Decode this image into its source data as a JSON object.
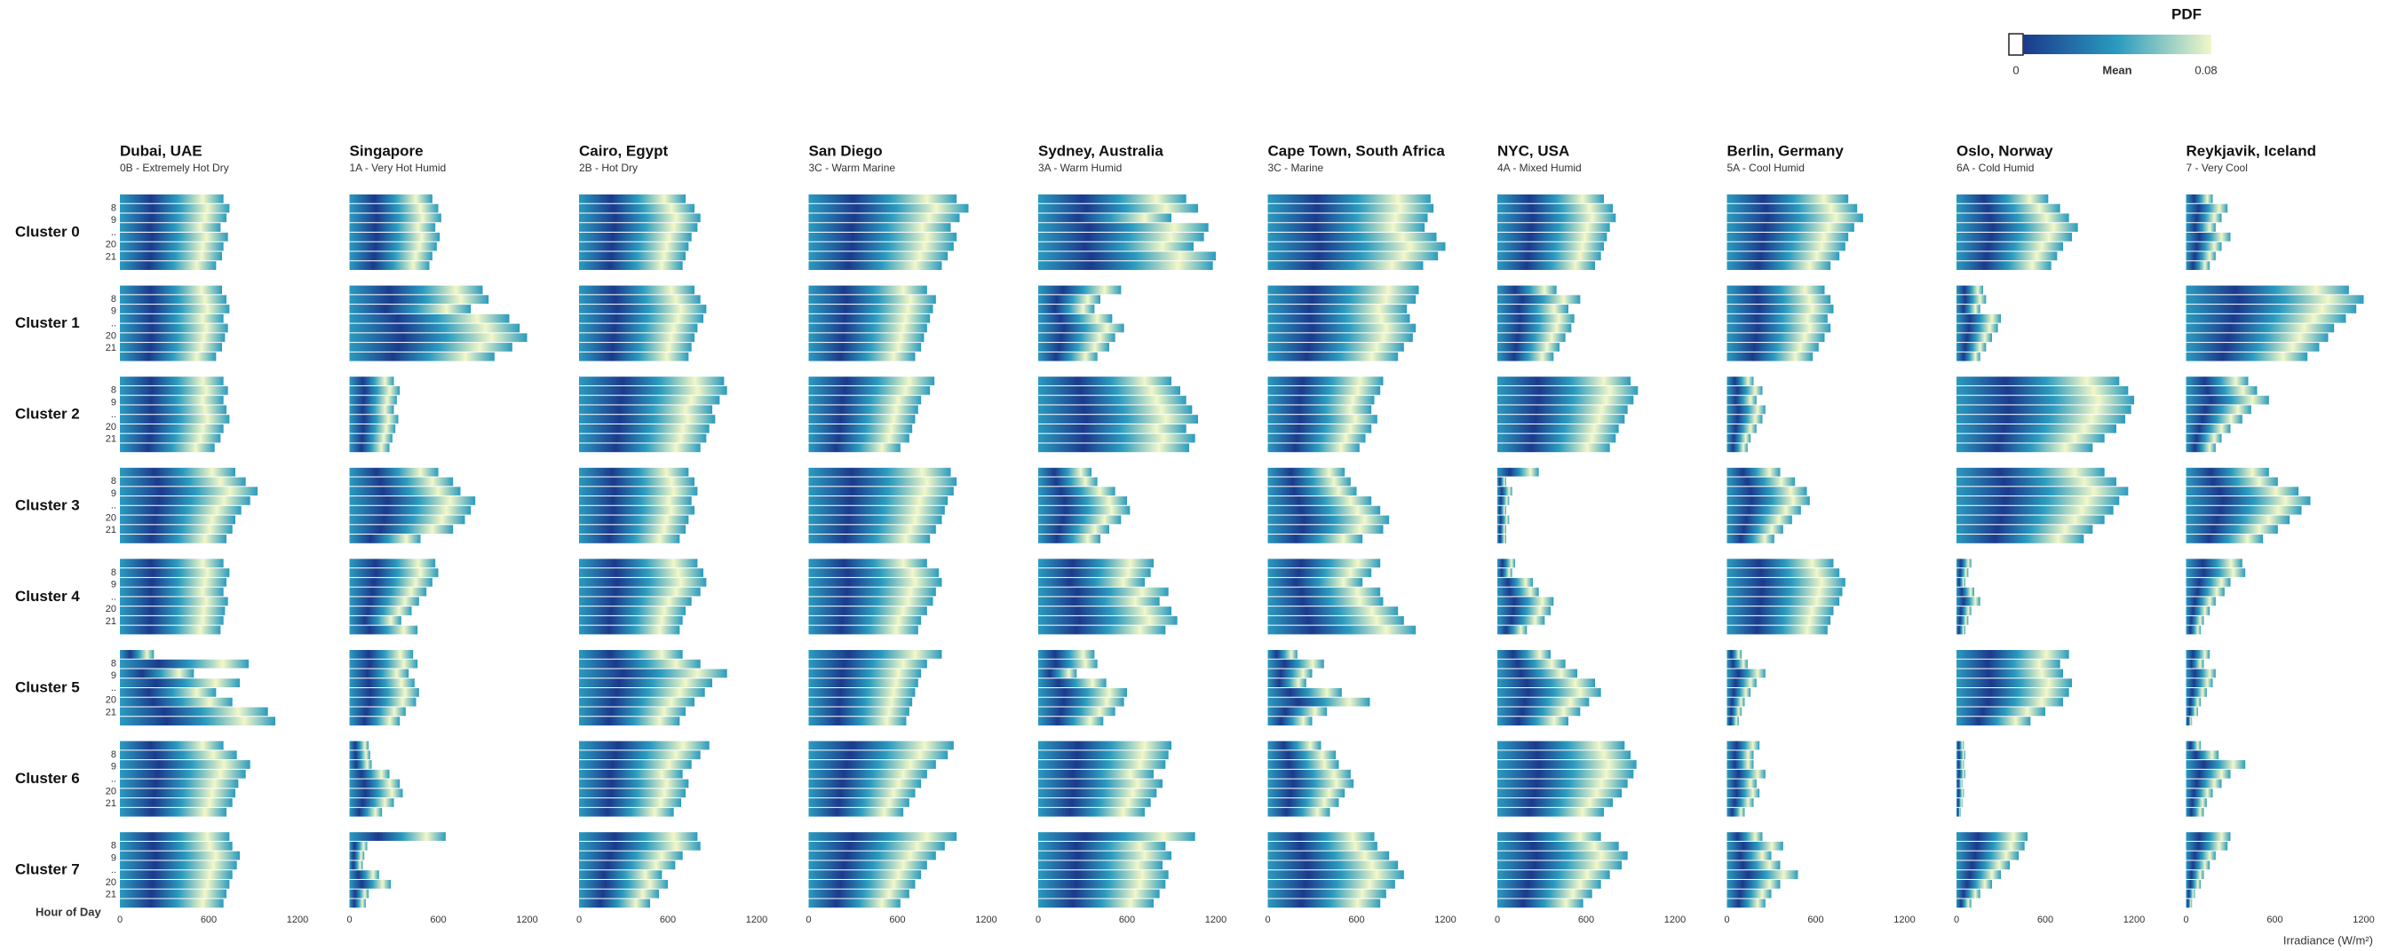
{
  "chart_data": {
    "type": "heatmap-grid",
    "xlabel": "Irradiance (W/m²)",
    "ylabel": "Hour of Day",
    "xlim": [
      0,
      1200
    ],
    "xticks": [
      0,
      600,
      1200
    ],
    "hour_labels": [
      "8",
      "9",
      "..",
      "20",
      "21"
    ],
    "clusters": [
      "Cluster 0",
      "Cluster 1",
      "Cluster 2",
      "Cluster 3",
      "Cluster 4",
      "Cluster 5",
      "Cluster 6",
      "Cluster 7"
    ],
    "colorbar": {
      "title": "PDF",
      "label": "Mean",
      "lim": [
        0,
        0.08
      ],
      "ticks": [
        0,
        0.08
      ],
      "colors": [
        "#ffffff",
        "#1b3a8c",
        "#2a9bbf",
        "#f2f7c8"
      ]
    },
    "cities": [
      {
        "name": "Dubai, UAE",
        "climate": "0B - Extremely Hot Dry",
        "extents": [
          [
            700,
            740,
            720,
            680,
            730,
            700,
            690,
            650
          ],
          [
            690,
            720,
            740,
            700,
            730,
            710,
            690,
            650
          ],
          [
            700,
            730,
            700,
            720,
            740,
            700,
            680,
            640
          ],
          [
            780,
            850,
            930,
            880,
            820,
            780,
            760,
            720
          ],
          [
            700,
            740,
            720,
            700,
            730,
            710,
            700,
            680
          ],
          [
            230,
            870,
            500,
            810,
            650,
            760,
            1000,
            1050
          ],
          [
            700,
            790,
            880,
            850,
            800,
            780,
            760,
            720
          ],
          [
            740,
            760,
            810,
            790,
            760,
            740,
            720,
            700
          ]
        ]
      },
      {
        "name": "Singapore",
        "climate": "1A - Very Hot Humid",
        "extents": [
          [
            560,
            600,
            620,
            580,
            610,
            590,
            560,
            540
          ],
          [
            900,
            940,
            820,
            1080,
            1150,
            1200,
            1100,
            980
          ],
          [
            300,
            340,
            320,
            300,
            330,
            310,
            290,
            270
          ],
          [
            600,
            700,
            750,
            850,
            820,
            780,
            700,
            480
          ],
          [
            580,
            600,
            560,
            520,
            470,
            420,
            350,
            460
          ],
          [
            430,
            460,
            400,
            440,
            470,
            450,
            380,
            340
          ],
          [
            130,
            140,
            150,
            270,
            340,
            360,
            300,
            220
          ],
          [
            650,
            120,
            100,
            90,
            200,
            280,
            130,
            110
          ]
        ]
      },
      {
        "name": "Cairo, Egypt",
        "climate": "2B - Hot Dry",
        "extents": [
          [
            720,
            780,
            820,
            800,
            760,
            740,
            720,
            700
          ],
          [
            780,
            820,
            860,
            840,
            800,
            780,
            760,
            740
          ],
          [
            980,
            1000,
            950,
            900,
            920,
            880,
            860,
            820
          ],
          [
            740,
            780,
            800,
            760,
            780,
            740,
            720,
            680
          ],
          [
            800,
            840,
            860,
            820,
            760,
            720,
            700,
            680
          ],
          [
            700,
            820,
            1000,
            900,
            850,
            780,
            720,
            680
          ],
          [
            880,
            820,
            760,
            700,
            740,
            720,
            690,
            640
          ],
          [
            800,
            820,
            700,
            650,
            560,
            600,
            540,
            480
          ]
        ]
      },
      {
        "name": "San Diego",
        "climate": "3C - Warm Marine",
        "extents": [
          [
            1000,
            1080,
            1020,
            960,
            1000,
            980,
            940,
            900
          ],
          [
            800,
            860,
            840,
            820,
            800,
            780,
            760,
            720
          ],
          [
            850,
            820,
            760,
            740,
            720,
            700,
            680,
            620
          ],
          [
            960,
            1000,
            980,
            940,
            920,
            900,
            860,
            820
          ],
          [
            800,
            880,
            900,
            860,
            840,
            800,
            760,
            740
          ],
          [
            900,
            800,
            760,
            740,
            720,
            700,
            680,
            660
          ],
          [
            980,
            940,
            860,
            800,
            760,
            720,
            680,
            640
          ],
          [
            1000,
            920,
            860,
            800,
            760,
            720,
            680,
            620
          ]
        ]
      },
      {
        "name": "Sydney, Australia",
        "climate": "3A - Warm Humid",
        "extents": [
          [
            1000,
            1080,
            900,
            1150,
            1120,
            1050,
            1200,
            1180
          ],
          [
            560,
            420,
            380,
            500,
            580,
            520,
            480,
            400
          ],
          [
            900,
            960,
            1000,
            1040,
            1080,
            1000,
            1060,
            1020
          ],
          [
            360,
            400,
            520,
            600,
            620,
            560,
            480,
            420
          ],
          [
            780,
            760,
            720,
            880,
            820,
            900,
            940,
            860
          ],
          [
            380,
            400,
            260,
            460,
            600,
            580,
            520,
            440
          ],
          [
            900,
            880,
            860,
            780,
            840,
            800,
            760,
            720
          ],
          [
            1060,
            860,
            900,
            840,
            880,
            860,
            820,
            780
          ]
        ]
      },
      {
        "name": "Cape Town, South Africa",
        "climate": "3C - Marine",
        "extents": [
          [
            1100,
            1120,
            1080,
            1060,
            1140,
            1200,
            1150,
            1050
          ],
          [
            1020,
            1000,
            940,
            960,
            1000,
            980,
            920,
            880
          ],
          [
            780,
            760,
            720,
            700,
            740,
            700,
            660,
            620
          ],
          [
            520,
            560,
            600,
            700,
            760,
            820,
            780,
            640
          ],
          [
            760,
            700,
            640,
            760,
            780,
            880,
            920,
            1000
          ],
          [
            200,
            380,
            300,
            260,
            500,
            690,
            400,
            300
          ],
          [
            360,
            460,
            480,
            560,
            580,
            520,
            480,
            420
          ],
          [
            720,
            740,
            820,
            880,
            920,
            860,
            800,
            760
          ]
        ]
      },
      {
        "name": "NYC, USA",
        "climate": "4A - Mixed Humid",
        "extents": [
          [
            720,
            780,
            800,
            760,
            740,
            720,
            700,
            660
          ],
          [
            400,
            560,
            480,
            520,
            500,
            460,
            420,
            380
          ],
          [
            900,
            950,
            920,
            880,
            860,
            820,
            800,
            760
          ],
          [
            280,
            60,
            100,
            80,
            60,
            80,
            60,
            60
          ],
          [
            120,
            100,
            240,
            280,
            380,
            360,
            320,
            200
          ],
          [
            360,
            460,
            540,
            660,
            700,
            620,
            560,
            480
          ],
          [
            860,
            900,
            940,
            920,
            880,
            840,
            780,
            720
          ],
          [
            700,
            820,
            880,
            840,
            760,
            700,
            640,
            580
          ]
        ]
      },
      {
        "name": "Berlin, Germany",
        "climate": "5A - Cool Humid",
        "extents": [
          [
            820,
            880,
            920,
            860,
            820,
            800,
            760,
            700
          ],
          [
            660,
            700,
            720,
            680,
            700,
            660,
            620,
            580
          ],
          [
            180,
            240,
            200,
            260,
            240,
            200,
            160,
            140
          ],
          [
            360,
            460,
            540,
            560,
            500,
            440,
            380,
            320
          ],
          [
            720,
            760,
            800,
            780,
            760,
            720,
            700,
            680
          ],
          [
            100,
            140,
            260,
            200,
            160,
            120,
            100,
            80
          ],
          [
            220,
            180,
            180,
            260,
            200,
            220,
            180,
            120
          ],
          [
            240,
            380,
            300,
            360,
            480,
            360,
            300,
            260
          ]
        ]
      },
      {
        "name": "Oslo, Norway",
        "climate": "6A - Cold Humid",
        "extents": [
          [
            620,
            700,
            760,
            820,
            780,
            720,
            680,
            640
          ],
          [
            180,
            200,
            160,
            300,
            280,
            240,
            200,
            160
          ],
          [
            1100,
            1160,
            1200,
            1180,
            1140,
            1080,
            1000,
            920
          ],
          [
            1000,
            1080,
            1160,
            1100,
            1060,
            1000,
            920,
            860
          ],
          [
            100,
            80,
            60,
            120,
            160,
            100,
            80,
            60
          ],
          [
            760,
            700,
            720,
            780,
            760,
            720,
            600,
            500
          ],
          [
            50,
            60,
            50,
            60,
            40,
            50,
            40,
            30
          ],
          [
            480,
            460,
            420,
            360,
            300,
            240,
            160,
            100
          ]
        ]
      },
      {
        "name": "Reykjavik, Iceland",
        "climate": "7 - Very Cool",
        "extents": [
          [
            180,
            280,
            240,
            200,
            300,
            240,
            200,
            160
          ],
          [
            1100,
            1200,
            1150,
            1080,
            1000,
            960,
            900,
            820
          ],
          [
            420,
            480,
            560,
            440,
            380,
            300,
            240,
            200
          ],
          [
            560,
            620,
            760,
            840,
            780,
            700,
            620,
            520
          ],
          [
            380,
            400,
            300,
            260,
            200,
            160,
            120,
            100
          ],
          [
            160,
            120,
            200,
            180,
            140,
            100,
            80,
            40
          ],
          [
            100,
            220,
            400,
            300,
            240,
            180,
            140,
            120
          ],
          [
            300,
            280,
            200,
            160,
            120,
            100,
            60,
            40
          ]
        ]
      }
    ]
  }
}
